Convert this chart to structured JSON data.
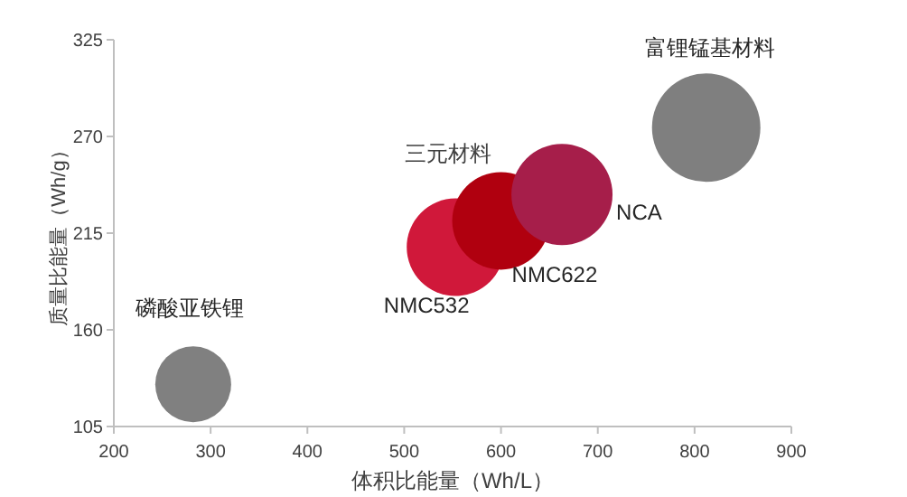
{
  "chart_data": {
    "type": "bubble",
    "xlabel": "体积比能量（Wh/L）",
    "ylabel": "质量比能量（Wh/g）",
    "xlim": [
      200,
      900
    ],
    "ylim": [
      105,
      325
    ],
    "xticks": [
      200,
      300,
      400,
      500,
      600,
      700,
      800,
      900
    ],
    "yticks": [
      105,
      160,
      215,
      270,
      325
    ],
    "series": [
      {
        "name": "磷酸亚铁锂",
        "color": "#808080",
        "x": [
          282
        ],
        "values": [
          129
        ],
        "sizes": [
          0.49
        ]
      },
      {
        "name": "NMC532",
        "color": "#d0183a",
        "x": [
          553
        ],
        "values": [
          207
        ],
        "sizes": [
          0.81
        ]
      },
      {
        "name": "NMC622",
        "color": "#b0000f",
        "x": [
          600
        ],
        "values": [
          222
        ],
        "sizes": [
          0.81
        ]
      },
      {
        "name": "NCA",
        "color": "#a61e4a",
        "x": [
          663
        ],
        "values": [
          237
        ],
        "sizes": [
          0.87
        ]
      },
      {
        "name": "富锂锰基材料",
        "color": "#7f7f7f",
        "x": [
          812
        ],
        "values": [
          275
        ],
        "sizes": [
          1
        ]
      }
    ],
    "annotations": [
      "三元材料"
    ]
  }
}
